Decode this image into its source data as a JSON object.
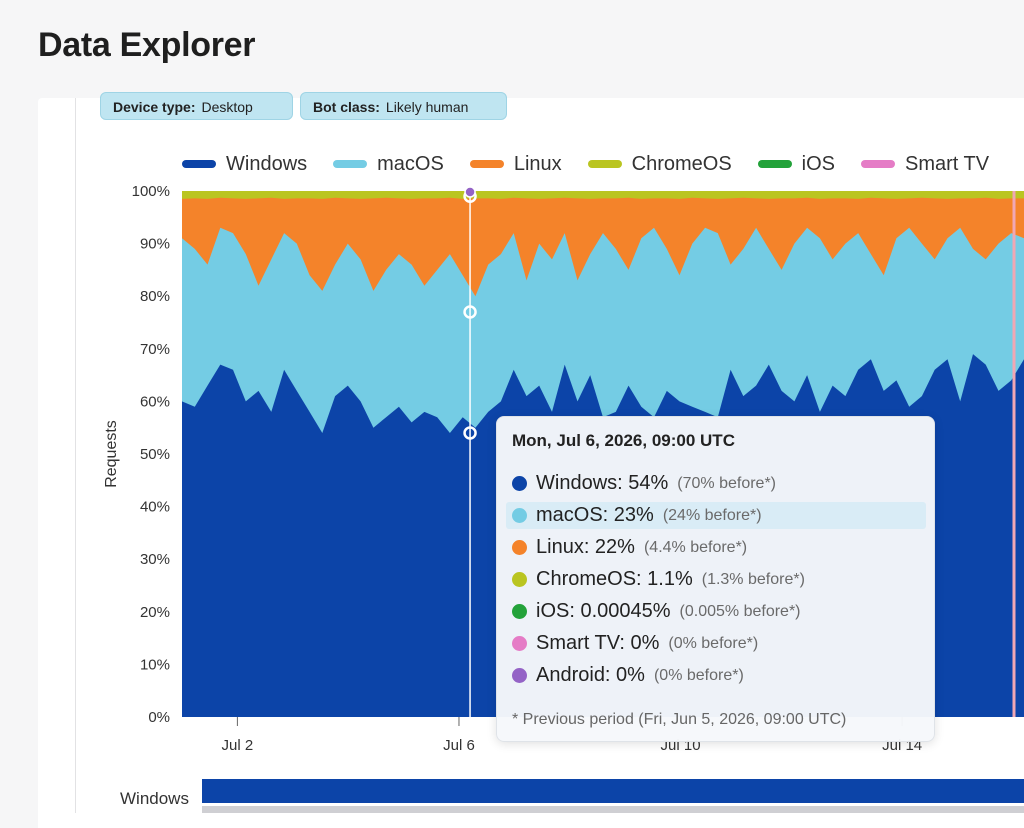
{
  "page": {
    "title": "Data Explorer"
  },
  "filters": [
    {
      "label": "Device type:",
      "value": "Desktop"
    },
    {
      "label": "Bot class:",
      "value": "Likely human"
    }
  ],
  "colors": {
    "Windows": "#0c44a8",
    "macOS": "#74cce4",
    "Linux": "#f4832a",
    "ChromeOS": "#bac521",
    "iOS": "#23a23a",
    "Smart TV": "#e57cc6",
    "Android": "#9463c6"
  },
  "chart_data": {
    "type": "area",
    "stacked": true,
    "ylabel": "Requests",
    "ylim": [
      0,
      100
    ],
    "y_ticks": [
      "0%",
      "10%",
      "20%",
      "30%",
      "40%",
      "50%",
      "60%",
      "70%",
      "80%",
      "90%",
      "100%"
    ],
    "x_ticks": [
      {
        "label": "Jul 2",
        "day": 2
      },
      {
        "label": "Jul 6",
        "day": 6
      },
      {
        "label": "Jul 10",
        "day": 10
      },
      {
        "label": "Jul 14",
        "day": 14
      }
    ],
    "x_range_days": [
      1,
      16.2
    ],
    "legend": [
      "Windows",
      "macOS",
      "Linux",
      "ChromeOS",
      "iOS",
      "Smart TV"
    ],
    "grid": false,
    "series": [
      {
        "name": "Windows",
        "values": [
          60,
          59,
          63,
          67,
          66,
          60,
          62,
          58,
          66,
          62,
          58,
          54,
          61,
          63,
          60,
          55,
          57,
          59,
          56,
          58,
          57,
          54,
          57,
          55,
          58,
          60,
          66,
          61,
          63,
          58,
          67,
          60,
          65,
          57,
          58,
          63,
          59,
          57,
          62,
          60,
          59,
          58,
          57,
          66,
          61,
          63,
          67,
          62,
          60,
          65,
          58,
          63,
          61,
          66,
          68,
          62,
          64,
          59,
          61,
          66,
          68,
          60,
          69,
          67,
          62,
          64,
          68
        ]
      },
      {
        "name": "macOS",
        "values": [
          91,
          89,
          86,
          93,
          92,
          88,
          82,
          87,
          92,
          90,
          84,
          81,
          86,
          90,
          87,
          81,
          85,
          88,
          86,
          82,
          85,
          88,
          84,
          80,
          86,
          88,
          92,
          83,
          90,
          87,
          92,
          83,
          88,
          92,
          89,
          85,
          91,
          93,
          89,
          84,
          90,
          93,
          92,
          86,
          89,
          93,
          89,
          85,
          90,
          93,
          91,
          87,
          90,
          92,
          88,
          84,
          91,
          93,
          90,
          87,
          91,
          93,
          89,
          87,
          90,
          92,
          91
        ]
      },
      {
        "name": "Linux",
        "values": [
          98.5,
          98.6,
          98.5,
          98.7,
          98.6,
          98.5,
          98.6,
          98.7,
          98.5,
          98.6,
          98.6,
          98.5,
          98.7,
          98.6,
          98.5,
          98.6,
          98.7,
          98.6,
          98.5,
          98.6,
          98.6,
          98.7,
          98.5,
          98.6,
          98.6,
          98.5,
          98.7,
          98.6,
          98.5,
          98.6,
          98.7,
          98.6,
          98.5,
          98.6,
          98.6,
          98.7,
          98.5,
          98.6,
          98.6,
          98.5,
          98.7,
          98.6,
          98.5,
          98.6,
          98.7,
          98.6,
          98.5,
          98.6,
          98.6,
          98.7,
          98.5,
          98.6,
          98.6,
          98.5,
          98.7,
          98.6,
          98.5,
          98.6,
          98.7,
          98.6,
          98.5,
          98.6,
          98.6,
          98.7,
          98.5,
          98.6,
          98.6
        ]
      },
      {
        "name": "ChromeOS",
        "values": []
      },
      {
        "name": "iOS",
        "values": []
      },
      {
        "name": "Smart TV",
        "values": []
      }
    ],
    "hover": {
      "day": 6.2,
      "tooltip": {
        "title": "Mon, Jul 6, 2026, 09:00 UTC",
        "rows": [
          {
            "series": "Windows",
            "text": "Windows: 54%",
            "previous": "(70% before*)"
          },
          {
            "series": "macOS",
            "text": "macOS: 23%",
            "previous": "(24% before*)",
            "highlight": true
          },
          {
            "series": "Linux",
            "text": "Linux: 22%",
            "previous": "(4.4% before*)"
          },
          {
            "series": "ChromeOS",
            "text": "ChromeOS: 1.1%",
            "previous": "(1.3% before*)"
          },
          {
            "series": "iOS",
            "text": "iOS: 0.00045%",
            "previous": "(0.005% before*)"
          },
          {
            "series": "Smart TV",
            "text": "Smart TV: 0%",
            "previous": "(0% before*)"
          },
          {
            "series": "Android",
            "text": "Android: 0%",
            "previous": "(0% before*)"
          }
        ],
        "footnote": "* Previous period (Fri, Jun 5, 2026, 09:00 UTC)"
      }
    }
  },
  "summary_bar": {
    "label": "Windows"
  }
}
